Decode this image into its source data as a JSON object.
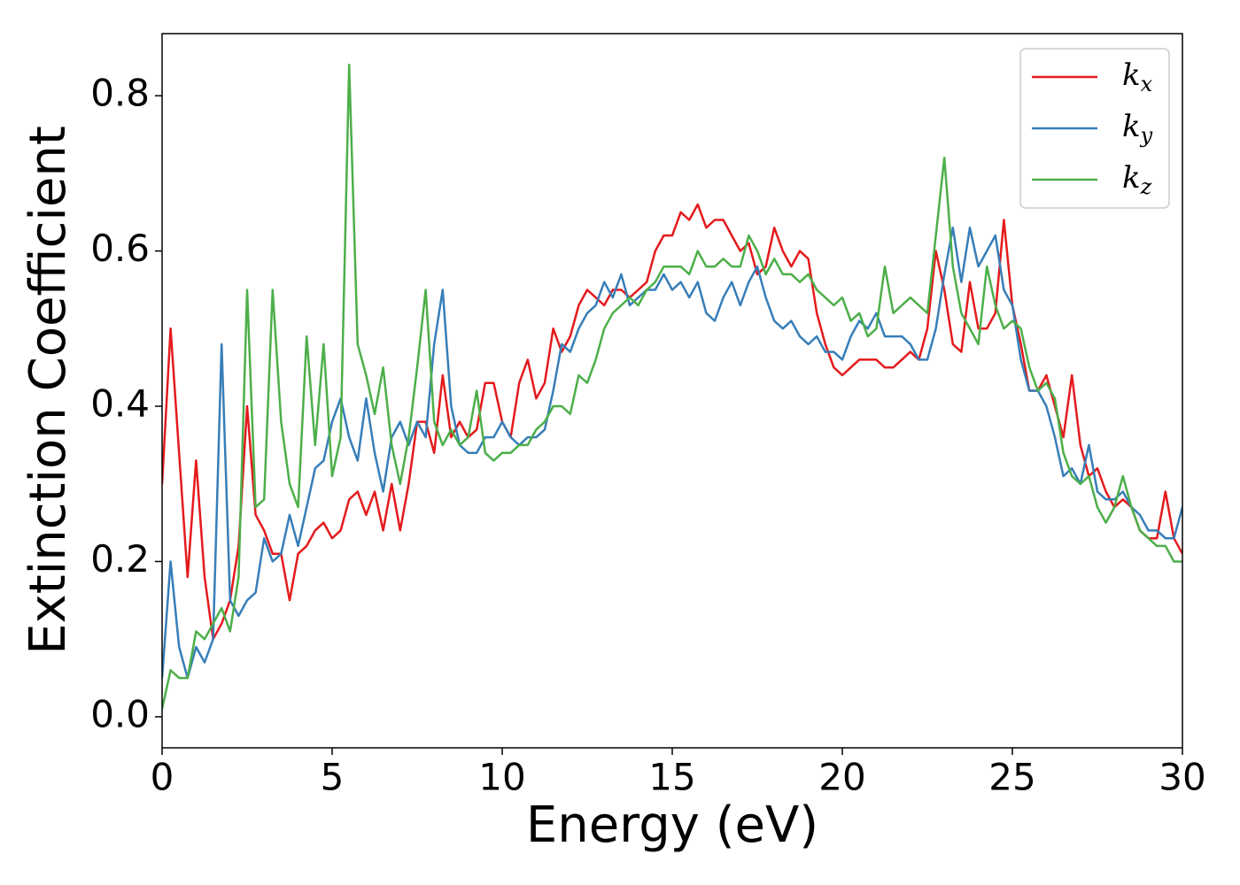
{
  "chart_data": {
    "type": "line",
    "xlabel": "Energy (eV)",
    "ylabel": "Extinction Coefficient",
    "x": [
      0,
      0.25,
      0.5,
      0.75,
      1,
      1.25,
      1.5,
      1.75,
      2,
      2.25,
      2.5,
      2.75,
      3,
      3.25,
      3.5,
      3.75,
      4,
      4.25,
      4.5,
      4.75,
      5,
      5.25,
      5.5,
      5.75,
      6,
      6.25,
      6.5,
      6.75,
      7,
      7.25,
      7.5,
      7.75,
      8,
      8.25,
      8.5,
      8.75,
      9,
      9.25,
      9.5,
      9.75,
      10,
      10.25,
      10.5,
      10.75,
      11,
      11.25,
      11.5,
      11.75,
      12,
      12.25,
      12.5,
      12.75,
      13,
      13.25,
      13.5,
      13.75,
      14,
      14.25,
      14.5,
      14.75,
      15,
      15.25,
      15.5,
      15.75,
      16,
      16.25,
      16.5,
      16.75,
      17,
      17.25,
      17.5,
      17.75,
      18,
      18.25,
      18.5,
      18.75,
      19,
      19.25,
      19.5,
      19.75,
      20,
      20.25,
      20.5,
      20.75,
      21,
      21.25,
      21.5,
      21.75,
      22,
      22.25,
      22.5,
      22.75,
      23,
      23.25,
      23.5,
      23.75,
      24,
      24.25,
      24.5,
      24.75,
      25,
      25.25,
      25.5,
      25.75,
      26,
      26.25,
      26.5,
      26.75,
      27,
      27.25,
      27.5,
      27.75,
      28,
      28.25,
      28.5,
      28.75,
      29,
      29.25,
      29.5,
      29.75,
      30
    ],
    "series": [
      {
        "name": "kx",
        "color": "#e41a1c",
        "values": [
          0.3,
          0.5,
          0.34,
          0.18,
          0.33,
          0.18,
          0.1,
          0.12,
          0.15,
          0.22,
          0.4,
          0.26,
          0.24,
          0.21,
          0.21,
          0.15,
          0.21,
          0.22,
          0.24,
          0.25,
          0.23,
          0.24,
          0.28,
          0.29,
          0.26,
          0.29,
          0.24,
          0.3,
          0.24,
          0.3,
          0.38,
          0.38,
          0.34,
          0.44,
          0.36,
          0.38,
          0.36,
          0.37,
          0.43,
          0.43,
          0.38,
          0.36,
          0.43,
          0.46,
          0.41,
          0.43,
          0.5,
          0.47,
          0.49,
          0.53,
          0.55,
          0.54,
          0.53,
          0.55,
          0.55,
          0.54,
          0.55,
          0.56,
          0.6,
          0.62,
          0.62,
          0.65,
          0.64,
          0.66,
          0.63,
          0.64,
          0.64,
          0.62,
          0.6,
          0.61,
          0.57,
          0.58,
          0.63,
          0.6,
          0.58,
          0.6,
          0.59,
          0.52,
          0.48,
          0.45,
          0.44,
          0.45,
          0.46,
          0.46,
          0.46,
          0.45,
          0.45,
          0.46,
          0.47,
          0.46,
          0.5,
          0.6,
          0.55,
          0.48,
          0.47,
          0.56,
          0.5,
          0.5,
          0.52,
          0.64,
          0.53,
          0.48,
          0.42,
          0.42,
          0.44,
          0.4,
          0.36,
          0.44,
          0.35,
          0.31,
          0.32,
          0.29,
          0.27,
          0.28,
          0.27,
          0.24,
          0.23,
          0.23,
          0.29,
          0.23,
          0.21
        ]
      },
      {
        "name": "ky",
        "color": "#377eb8",
        "values": [
          0.05,
          0.2,
          0.09,
          0.05,
          0.09,
          0.07,
          0.1,
          0.48,
          0.15,
          0.13,
          0.15,
          0.16,
          0.23,
          0.2,
          0.21,
          0.26,
          0.22,
          0.27,
          0.32,
          0.33,
          0.38,
          0.41,
          0.36,
          0.33,
          0.41,
          0.34,
          0.29,
          0.36,
          0.38,
          0.35,
          0.38,
          0.36,
          0.48,
          0.55,
          0.4,
          0.35,
          0.34,
          0.34,
          0.36,
          0.36,
          0.38,
          0.36,
          0.35,
          0.36,
          0.36,
          0.37,
          0.42,
          0.48,
          0.47,
          0.5,
          0.52,
          0.53,
          0.56,
          0.54,
          0.57,
          0.53,
          0.54,
          0.55,
          0.55,
          0.57,
          0.55,
          0.56,
          0.54,
          0.56,
          0.52,
          0.51,
          0.54,
          0.56,
          0.53,
          0.56,
          0.58,
          0.54,
          0.51,
          0.5,
          0.51,
          0.49,
          0.48,
          0.49,
          0.47,
          0.47,
          0.46,
          0.49,
          0.51,
          0.5,
          0.52,
          0.49,
          0.49,
          0.49,
          0.48,
          0.46,
          0.46,
          0.5,
          0.57,
          0.63,
          0.56,
          0.63,
          0.58,
          0.6,
          0.62,
          0.55,
          0.53,
          0.46,
          0.42,
          0.42,
          0.4,
          0.36,
          0.31,
          0.32,
          0.3,
          0.35,
          0.29,
          0.28,
          0.28,
          0.29,
          0.27,
          0.26,
          0.24,
          0.24,
          0.23,
          0.23,
          0.27
        ]
      },
      {
        "name": "kz",
        "color": "#4daf4a",
        "values": [
          0.01,
          0.06,
          0.05,
          0.05,
          0.11,
          0.1,
          0.12,
          0.14,
          0.11,
          0.18,
          0.55,
          0.27,
          0.28,
          0.55,
          0.38,
          0.3,
          0.27,
          0.49,
          0.35,
          0.48,
          0.31,
          0.36,
          0.84,
          0.48,
          0.44,
          0.39,
          0.45,
          0.35,
          0.3,
          0.36,
          0.45,
          0.55,
          0.38,
          0.35,
          0.37,
          0.35,
          0.36,
          0.42,
          0.34,
          0.33,
          0.34,
          0.34,
          0.35,
          0.35,
          0.37,
          0.38,
          0.4,
          0.4,
          0.39,
          0.44,
          0.43,
          0.46,
          0.5,
          0.52,
          0.53,
          0.54,
          0.53,
          0.55,
          0.56,
          0.58,
          0.58,
          0.58,
          0.57,
          0.6,
          0.58,
          0.58,
          0.59,
          0.58,
          0.58,
          0.62,
          0.6,
          0.57,
          0.59,
          0.57,
          0.57,
          0.56,
          0.57,
          0.55,
          0.54,
          0.53,
          0.54,
          0.51,
          0.52,
          0.49,
          0.5,
          0.58,
          0.52,
          0.53,
          0.54,
          0.53,
          0.52,
          0.62,
          0.72,
          0.58,
          0.52,
          0.5,
          0.48,
          0.58,
          0.53,
          0.5,
          0.51,
          0.5,
          0.45,
          0.42,
          0.43,
          0.41,
          0.34,
          0.31,
          0.3,
          0.31,
          0.27,
          0.25,
          0.27,
          0.31,
          0.27,
          0.24,
          0.23,
          0.22,
          0.22,
          0.2,
          0.2
        ]
      }
    ],
    "xlim": [
      0,
      30
    ],
    "xticks": [
      0,
      5,
      10,
      15,
      20,
      25,
      30
    ],
    "ylim": [
      -0.04,
      0.88
    ],
    "yticks": [
      {
        "value": 0,
        "label": "0.0"
      },
      0.2,
      0.4,
      0.6,
      0.8
    ],
    "grid": false,
    "legend": "upper right"
  }
}
